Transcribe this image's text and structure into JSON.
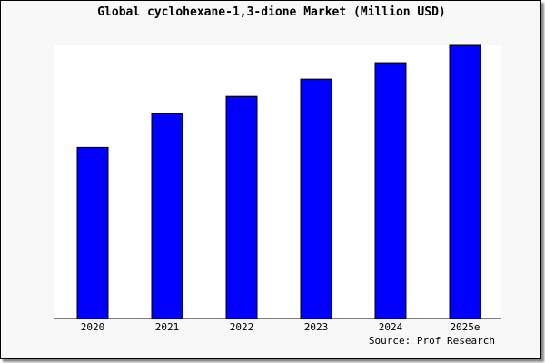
{
  "chart_data": {
    "type": "bar",
    "title": "Global cyclohexane-1,3-dione Market (Million USD)",
    "categories": [
      "2020",
      "2021",
      "2022",
      "2023",
      "2024",
      "2025e"
    ],
    "values": [
      188,
      225,
      244,
      263,
      281,
      300
    ],
    "ylim": [
      0,
      300
    ],
    "xlabel": "",
    "ylabel": "",
    "grid": false,
    "bar_color": "#0000ff",
    "source": "Source: Prof Research"
  }
}
